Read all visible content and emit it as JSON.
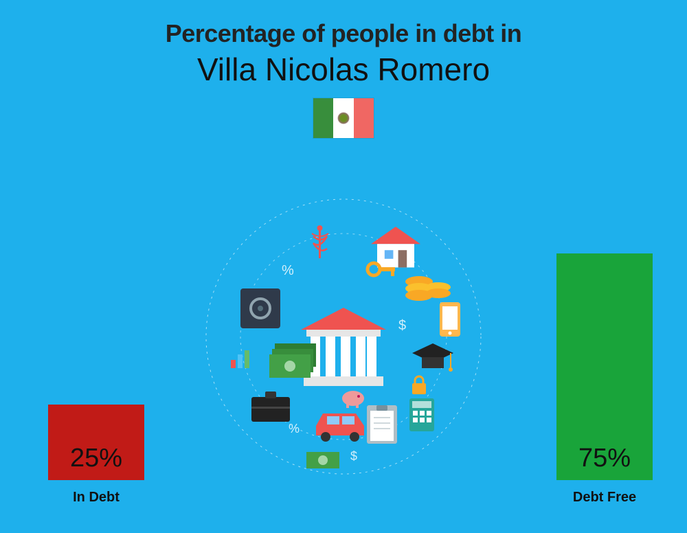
{
  "title": {
    "line1": "Percentage of people in debt in",
    "line2": "Villa Nicolas Romero",
    "line1_fontsize": 36,
    "line2_fontsize": 46,
    "line1_color": "#232323",
    "line2_color": "#111111"
  },
  "flag": {
    "stripe_colors": [
      "#388e3c",
      "#ffffff",
      "#f06763"
    ]
  },
  "background_color": "#1eb0ec",
  "chart": {
    "type": "bar",
    "max_value": 100,
    "max_bar_height": 440,
    "bars": [
      {
        "id": "in-debt",
        "label": "In Debt",
        "value": 25,
        "value_text": "25%",
        "color": "#c11b17",
        "side": "left"
      },
      {
        "id": "debt-free",
        "label": "Debt Free",
        "value": 75,
        "value_text": "75%",
        "color": "#19a43a",
        "side": "right"
      }
    ],
    "value_fontsize": 38,
    "label_fontsize": 20
  },
  "center_icons": {
    "ring_color": "#ffffff",
    "items": [
      {
        "name": "bank-building",
        "fill": "#ffffff",
        "roof": "#ef5350"
      },
      {
        "name": "house",
        "fill": "#ffffff",
        "roof": "#ef5350"
      },
      {
        "name": "car",
        "fill": "#ef5350"
      },
      {
        "name": "cash-stack",
        "fill": "#2e7d32"
      },
      {
        "name": "safe",
        "fill": "#2f3a4a"
      },
      {
        "name": "coins",
        "fill": "#f9a825"
      },
      {
        "name": "graduation-cap",
        "fill": "#222"
      },
      {
        "name": "smartphone",
        "fill": "#ffb74d"
      },
      {
        "name": "calculator",
        "fill": "#26a69a"
      },
      {
        "name": "clipboard",
        "fill": "#ffffff"
      },
      {
        "name": "briefcase",
        "fill": "#222"
      },
      {
        "name": "key",
        "fill": "#f9a825"
      },
      {
        "name": "piggy-bank",
        "fill": "#ef9a9a"
      }
    ]
  }
}
